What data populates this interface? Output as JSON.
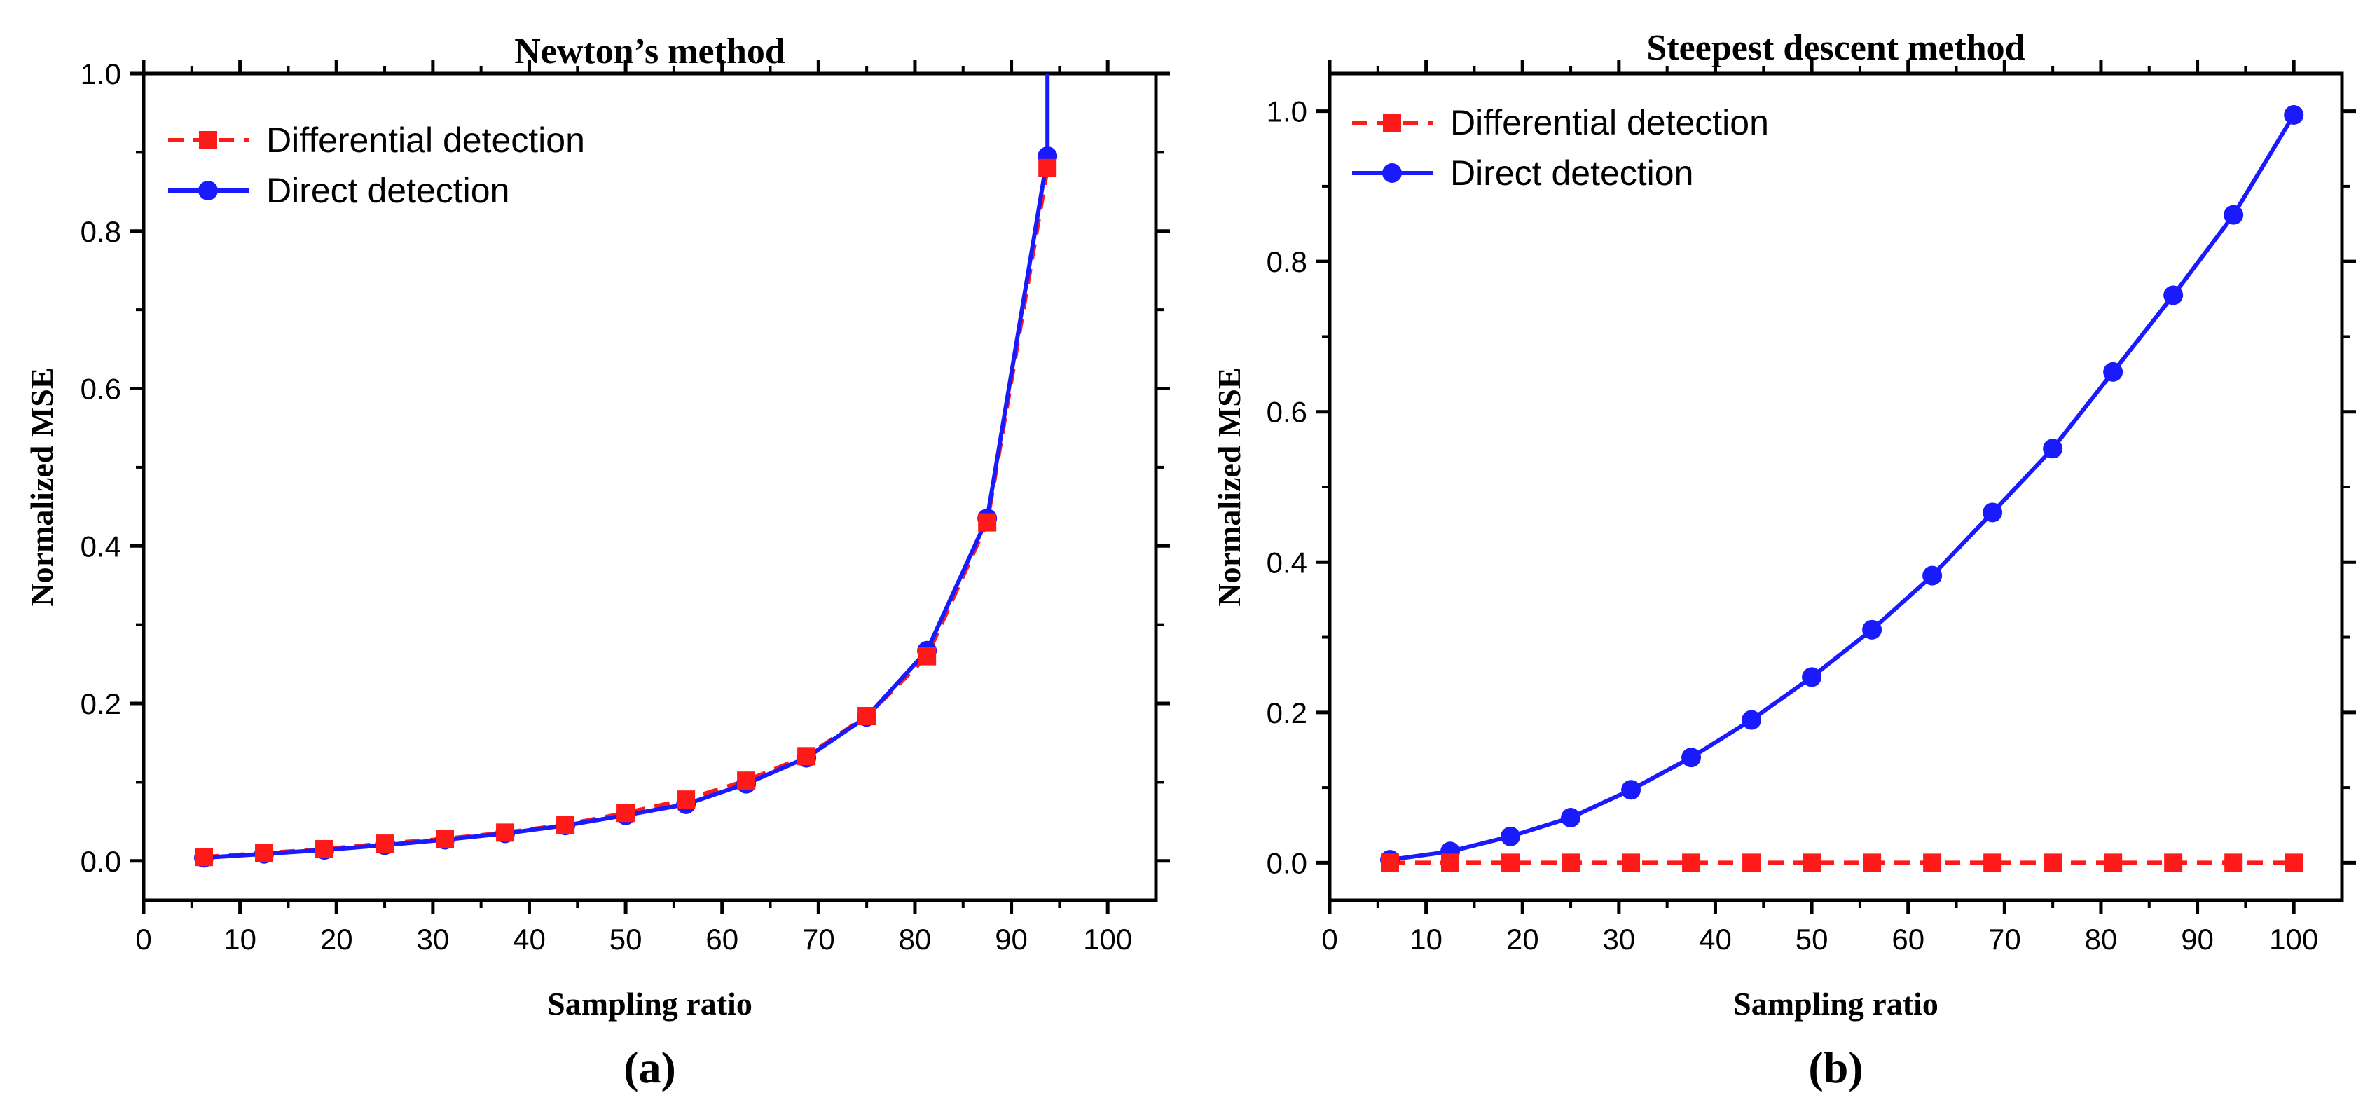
{
  "chart_data": [
    {
      "type": "line",
      "title": "Newton’s method",
      "xlabel": "Sampling ratio",
      "ylabel": "Normalized MSE",
      "panel_label": "(a)",
      "xlim": [
        0,
        105
      ],
      "ylim": [
        -0.05,
        1.0
      ],
      "xticks": [
        0,
        10,
        20,
        30,
        40,
        50,
        60,
        70,
        80,
        90,
        100
      ],
      "yticks": [
        0.0,
        0.2,
        0.4,
        0.6,
        0.8,
        1.0
      ],
      "ytick_labels": [
        "0.0",
        "0.2",
        "0.4",
        "0.6",
        "0.8",
        "1.0"
      ],
      "legend_position": "top-left",
      "series": [
        {
          "name": "Differential detection",
          "color": "#ff1a1a",
          "line_style": "dashed",
          "marker": "square",
          "x": [
            6.25,
            12.5,
            18.75,
            25,
            31.25,
            37.5,
            43.75,
            50,
            56.25,
            62.5,
            68.75,
            75,
            81.25,
            87.5,
            93.75
          ],
          "y": [
            0.005,
            0.01,
            0.015,
            0.022,
            0.028,
            0.036,
            0.046,
            0.061,
            0.078,
            0.102,
            0.133,
            0.184,
            0.26,
            0.43,
            0.88
          ]
        },
        {
          "name": "Direct detection",
          "color": "#1a1aff",
          "line_style": "solid",
          "marker": "circle",
          "x": [
            6.25,
            12.5,
            18.75,
            25,
            31.25,
            37.5,
            43.75,
            50,
            56.25,
            62.5,
            68.75,
            75,
            81.25,
            87.5,
            93.75
          ],
          "y": [
            0.004,
            0.009,
            0.014,
            0.02,
            0.027,
            0.035,
            0.045,
            0.058,
            0.072,
            0.098,
            0.131,
            0.183,
            0.267,
            0.435,
            0.895
          ],
          "extends_to_top": true
        }
      ]
    },
    {
      "type": "line",
      "title": "Steepest descent method",
      "xlabel": "Sampling ratio",
      "ylabel": "Normalized MSE",
      "panel_label": "(b)",
      "xlim": [
        0,
        105
      ],
      "ylim": [
        -0.05,
        1.05
      ],
      "xticks": [
        0,
        10,
        20,
        30,
        40,
        50,
        60,
        70,
        80,
        90,
        100
      ],
      "yticks": [
        0.0,
        0.2,
        0.4,
        0.6,
        0.8,
        1.0
      ],
      "ytick_labels": [
        "0.0",
        "0.2",
        "0.4",
        "0.6",
        "0.8",
        "1.0"
      ],
      "legend_position": "top-left",
      "series": [
        {
          "name": "Differential detection",
          "color": "#ff1a1a",
          "line_style": "dashed",
          "marker": "square",
          "x": [
            6.25,
            12.5,
            18.75,
            25,
            31.25,
            37.5,
            43.75,
            50,
            56.25,
            62.5,
            68.75,
            75,
            81.25,
            87.5,
            93.75,
            100
          ],
          "y": [
            0,
            0,
            0,
            0,
            0,
            0,
            0,
            0,
            0,
            0,
            0,
            0,
            0,
            0,
            0,
            0
          ]
        },
        {
          "name": "Direct detection",
          "color": "#1a1aff",
          "line_style": "solid",
          "marker": "circle",
          "x": [
            6.25,
            12.5,
            18.75,
            25,
            31.25,
            37.5,
            43.75,
            50,
            56.25,
            62.5,
            68.75,
            75,
            81.25,
            87.5,
            93.75,
            100
          ],
          "y": [
            0.004,
            0.015,
            0.035,
            0.06,
            0.097,
            0.14,
            0.19,
            0.247,
            0.31,
            0.382,
            0.466,
            0.551,
            0.653,
            0.755,
            0.862,
            0.995
          ]
        }
      ]
    }
  ]
}
